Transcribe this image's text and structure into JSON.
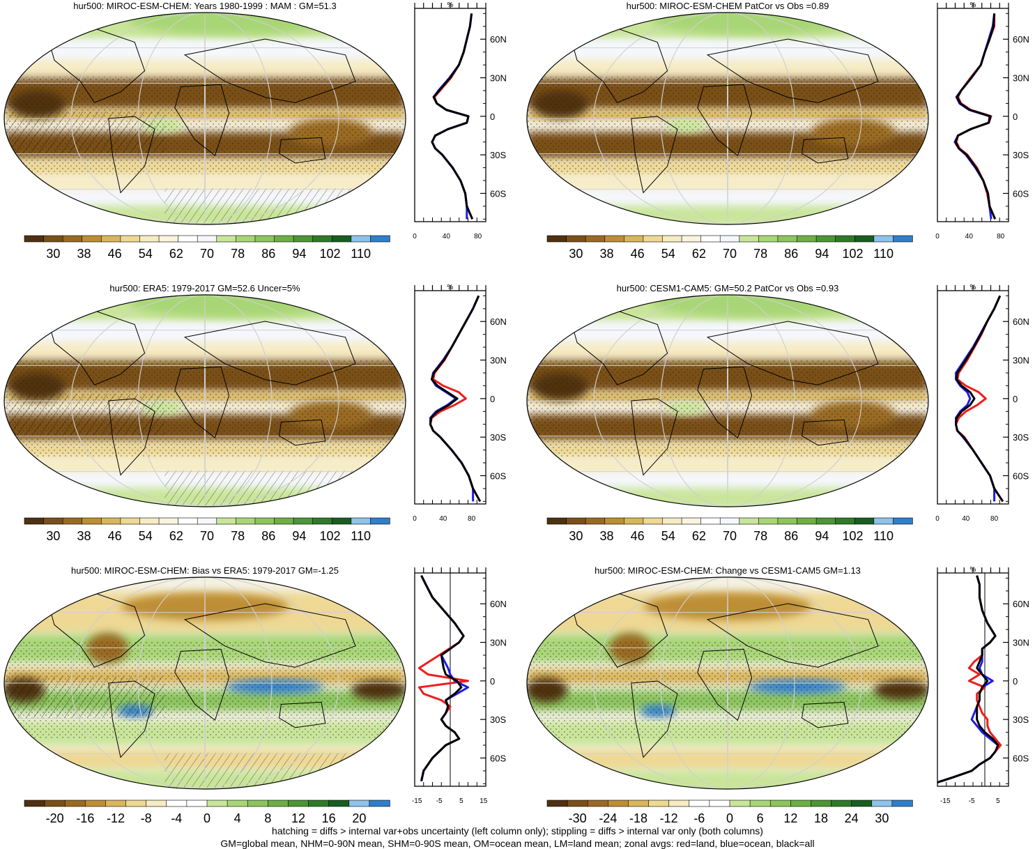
{
  "colors": {
    "abs_scale": [
      "#4f3010",
      "#7a5019",
      "#9a6a24",
      "#bd8e35",
      "#d9b65c",
      "#eed894",
      "#f6ebc2",
      "#faf3de",
      "#ffffff",
      "#f5f7fc",
      "#c9e59a",
      "#a8d676",
      "#8cc45e",
      "#6daf45",
      "#4d9535",
      "#2f7a28",
      "#1a5d20",
      "#8ec3ea",
      "#2f7fc9"
    ],
    "diff_scale": [
      "#4f3010",
      "#7a5019",
      "#9a6a24",
      "#bd8e35",
      "#d9b65c",
      "#eed894",
      "#f6ebc2",
      "#ffffff",
      "#ffffff",
      "#c9e59a",
      "#a8d676",
      "#8cc45e",
      "#6daf45",
      "#4d9535",
      "#2f7a28",
      "#1a5d20",
      "#8ec3ea",
      "#2f7fc9"
    ],
    "land_line": "#ee1c1c",
    "ocean_line": "#1c1cee",
    "all_line": "#000000"
  },
  "footnote": {
    "line1": "hatching = diffs > internal var+obs uncertainty (left column only); stippling = diffs > internal var only (both columns)",
    "line2": "GM=global mean, NHM=0-90N mean, SHM=0-90S mean, OM=ocean mean, LM=land mean; zonal avgs: red=land, blue=ocean, black=all"
  },
  "chart_data": [
    {
      "type": "heatmap",
      "title": "hur500: MIROC-ESM-CHEM: Years 1980-1999 : MAM : GM=51.3",
      "colorbar_labels": [
        "30",
        "38",
        "46",
        "54",
        "62",
        "70",
        "78",
        "86",
        "94",
        "102",
        "110"
      ],
      "zonal": {
        "unit_label": "%",
        "xticks": [
          "0",
          "40",
          "80"
        ],
        "xlim": [
          0,
          90
        ],
        "lat_labels": [
          "60N",
          "30N",
          "0",
          "30S",
          "60S"
        ],
        "lat": [
          80,
          70,
          60,
          50,
          40,
          30,
          20,
          15,
          10,
          5,
          0,
          -5,
          -10,
          -15,
          -20,
          -25,
          -30,
          -40,
          -50,
          -60,
          -70,
          -80
        ],
        "land": [
          72,
          70,
          66,
          62,
          56,
          46,
          32,
          25,
          28,
          40,
          68,
          66,
          42,
          26,
          22,
          26,
          35,
          48,
          58,
          64,
          66,
          73
        ],
        "ocean": [
          72,
          70,
          66,
          62,
          56,
          44,
          30,
          24,
          28,
          40,
          68,
          66,
          42,
          26,
          22,
          26,
          35,
          48,
          58,
          64,
          66,
          66
        ],
        "all": [
          72,
          70,
          66,
          62,
          56,
          45,
          31,
          24,
          28,
          40,
          68,
          66,
          42,
          26,
          22,
          26,
          35,
          48,
          58,
          64,
          66,
          73
        ]
      }
    },
    {
      "type": "heatmap",
      "title": "hur500: MIROC-ESM-CHEM PatCor vs Obs =0.89",
      "colorbar_labels": [
        "30",
        "38",
        "46",
        "54",
        "62",
        "70",
        "78",
        "86",
        "94",
        "102",
        "110"
      ],
      "zonal": {
        "unit_label": "%",
        "xticks": [
          "0",
          "40",
          "80"
        ],
        "xlim": [
          0,
          90
        ],
        "lat_labels": [
          "60N",
          "30N",
          "0",
          "30S",
          "60S"
        ],
        "lat": [
          80,
          70,
          60,
          50,
          40,
          30,
          20,
          15,
          10,
          5,
          0,
          -5,
          -10,
          -15,
          -20,
          -25,
          -30,
          -40,
          -50,
          -60,
          -70,
          -80
        ],
        "land": [
          72,
          72,
          66,
          60,
          55,
          42,
          30,
          26,
          30,
          42,
          68,
          65,
          42,
          26,
          24,
          28,
          38,
          50,
          58,
          63,
          66,
          73
        ],
        "ocean": [
          72,
          70,
          65,
          60,
          55,
          43,
          30,
          24,
          28,
          40,
          66,
          65,
          42,
          26,
          22,
          27,
          36,
          48,
          58,
          64,
          66,
          68
        ],
        "all": [
          72,
          71,
          66,
          60,
          55,
          43,
          30,
          25,
          29,
          41,
          67,
          65,
          42,
          26,
          23,
          27,
          37,
          49,
          58,
          64,
          66,
          73
        ]
      }
    },
    {
      "type": "heatmap",
      "title": "hur500: ERA5: 1979-2017 GM=52.6 Uncer=5%",
      "colorbar_labels": [
        "30",
        "38",
        "46",
        "54",
        "62",
        "70",
        "78",
        "86",
        "94",
        "102",
        "110"
      ],
      "zonal": {
        "unit_label": "%",
        "xticks": [
          "0",
          "40",
          "80"
        ],
        "xlim": [
          0,
          100
        ],
        "lat_labels": [
          "60N",
          "30N",
          "0",
          "30S",
          "60S"
        ],
        "lat": [
          80,
          70,
          60,
          50,
          40,
          30,
          20,
          15,
          10,
          5,
          0,
          -5,
          -10,
          -15,
          -20,
          -25,
          -30,
          -40,
          -50,
          -60,
          -70,
          -80
        ],
        "land": [
          90,
          82,
          72,
          62,
          52,
          42,
          28,
          26,
          40,
          62,
          72,
          56,
          36,
          24,
          22,
          26,
          36,
          52,
          66,
          76,
          82,
          92
        ],
        "ocean": [
          90,
          82,
          72,
          62,
          52,
          40,
          26,
          24,
          30,
          44,
          58,
          46,
          30,
          22,
          22,
          26,
          36,
          52,
          66,
          76,
          82,
          82
        ],
        "all": [
          90,
          82,
          72,
          62,
          52,
          41,
          27,
          24,
          32,
          46,
          60,
          48,
          32,
          23,
          22,
          26,
          36,
          52,
          66,
          76,
          82,
          92
        ]
      }
    },
    {
      "type": "heatmap",
      "title": "hur500: CESM1-CAM5: GM=50.2 PatCor vs Obs =0.93",
      "colorbar_labels": [
        "30",
        "38",
        "46",
        "54",
        "62",
        "70",
        "78",
        "86",
        "94",
        "102",
        "110"
      ],
      "zonal": {
        "unit_label": "%",
        "xticks": [
          "0",
          "40",
          "80"
        ],
        "xlim": [
          0,
          100
        ],
        "lat_labels": [
          "60N",
          "30N",
          "0",
          "30S",
          "60S"
        ],
        "lat": [
          80,
          70,
          60,
          50,
          40,
          30,
          20,
          15,
          10,
          5,
          0,
          -5,
          -10,
          -15,
          -20,
          -25,
          -30,
          -40,
          -50,
          -60,
          -70,
          -80
        ],
        "land": [
          88,
          80,
          70,
          62,
          52,
          42,
          30,
          28,
          40,
          58,
          68,
          56,
          40,
          30,
          26,
          28,
          38,
          50,
          62,
          74,
          80,
          92
        ],
        "ocean": [
          88,
          80,
          70,
          60,
          50,
          38,
          26,
          26,
          32,
          42,
          46,
          42,
          32,
          26,
          26,
          28,
          36,
          50,
          62,
          74,
          80,
          80
        ],
        "all": [
          88,
          80,
          70,
          61,
          51,
          40,
          28,
          27,
          34,
          46,
          52,
          46,
          34,
          27,
          26,
          28,
          37,
          50,
          62,
          74,
          80,
          92
        ]
      }
    },
    {
      "type": "heatmap",
      "title": "hur500: MIROC-ESM-CHEM: Bias vs ERA5: 1979-2017 GM=-1.25",
      "colorbar_labels": [
        "-20",
        "-16",
        "-12",
        "-8",
        "-4",
        "0",
        "4",
        "8",
        "12",
        "16",
        "20"
      ],
      "zonal": {
        "unit_label": "",
        "xticks": [
          "-15",
          "-5",
          "5",
          "15"
        ],
        "xlim": [
          -16,
          16
        ],
        "zero_line": true,
        "lat_labels": [
          "60N",
          "30N",
          "0",
          "30S",
          "60S"
        ],
        "lat": [
          82,
          75,
          65,
          55,
          45,
          35,
          30,
          20,
          10,
          5,
          0,
          -5,
          -10,
          -15,
          -20,
          -25,
          -30,
          -35,
          -40,
          -45,
          -50,
          -60,
          -70,
          -78
        ],
        "land": [
          -13,
          -11,
          -8,
          -3,
          2,
          6,
          4,
          -5,
          -14,
          -10,
          8,
          -14,
          -12,
          -4,
          0,
          -2,
          -4,
          -2,
          2,
          4,
          -2,
          -8,
          -12,
          -13
        ],
        "ocean": [
          -13,
          -11,
          -8,
          -3,
          2,
          6,
          4,
          -4,
          -1,
          0,
          2,
          8,
          3,
          -2,
          -1,
          -2,
          -4,
          -2,
          2,
          4,
          -2,
          -8,
          -12,
          -13
        ],
        "all": [
          -13,
          -11,
          -8,
          -3,
          2,
          6,
          4,
          -4,
          -3,
          -2,
          3,
          5,
          2,
          -2,
          -1,
          -2,
          -4,
          -2,
          2,
          4,
          -2,
          -8,
          -12,
          -13
        ]
      }
    },
    {
      "type": "heatmap",
      "title": "hur500: MIROC-ESM-CHEM: Change vs CESM1-CAM5 GM=1.13",
      "colorbar_labels": [
        "-30",
        "-24",
        "-18",
        "-12",
        "-6",
        "0",
        "6",
        "12",
        "18",
        "24",
        "30"
      ],
      "zonal": {
        "unit_label": "%",
        "xticks": [
          "-15",
          "-5",
          "5"
        ],
        "xlim": [
          -18,
          9
        ],
        "lat_labels": [
          "60N",
          "30N",
          "0",
          "30S",
          "60S"
        ],
        "lat": [
          82,
          75,
          65,
          55,
          45,
          35,
          30,
          25,
          20,
          15,
          10,
          5,
          0,
          -5,
          -10,
          -15,
          -20,
          -25,
          -30,
          -35,
          -40,
          -45,
          -50,
          -55,
          -60,
          -65,
          -70,
          -75,
          -79
        ],
        "land": [
          -3,
          -2,
          -2,
          -1,
          1,
          4,
          2,
          -1,
          -1,
          -4,
          -6,
          -2,
          -6,
          0,
          -3,
          -3,
          -2,
          -1,
          1,
          1,
          2,
          4,
          6,
          4,
          2,
          -2,
          -5,
          -12,
          -18
        ],
        "ocean": [
          -3,
          -2,
          -2,
          -1,
          1,
          4,
          2,
          -1,
          -1,
          -1,
          -2,
          -1,
          3,
          -1,
          -2,
          -2,
          -3,
          -4,
          -5,
          -3,
          -1,
          2,
          5,
          4,
          2,
          -2,
          -5,
          -12,
          -18
        ],
        "all": [
          -3,
          -2,
          -2,
          -1,
          1,
          4,
          2,
          -1,
          -1,
          -2,
          -3,
          -1,
          1,
          -1,
          -2,
          -2,
          -3,
          -3,
          -3,
          -2,
          0,
          3,
          5,
          4,
          2,
          -2,
          -5,
          -12,
          -18
        ]
      }
    }
  ]
}
